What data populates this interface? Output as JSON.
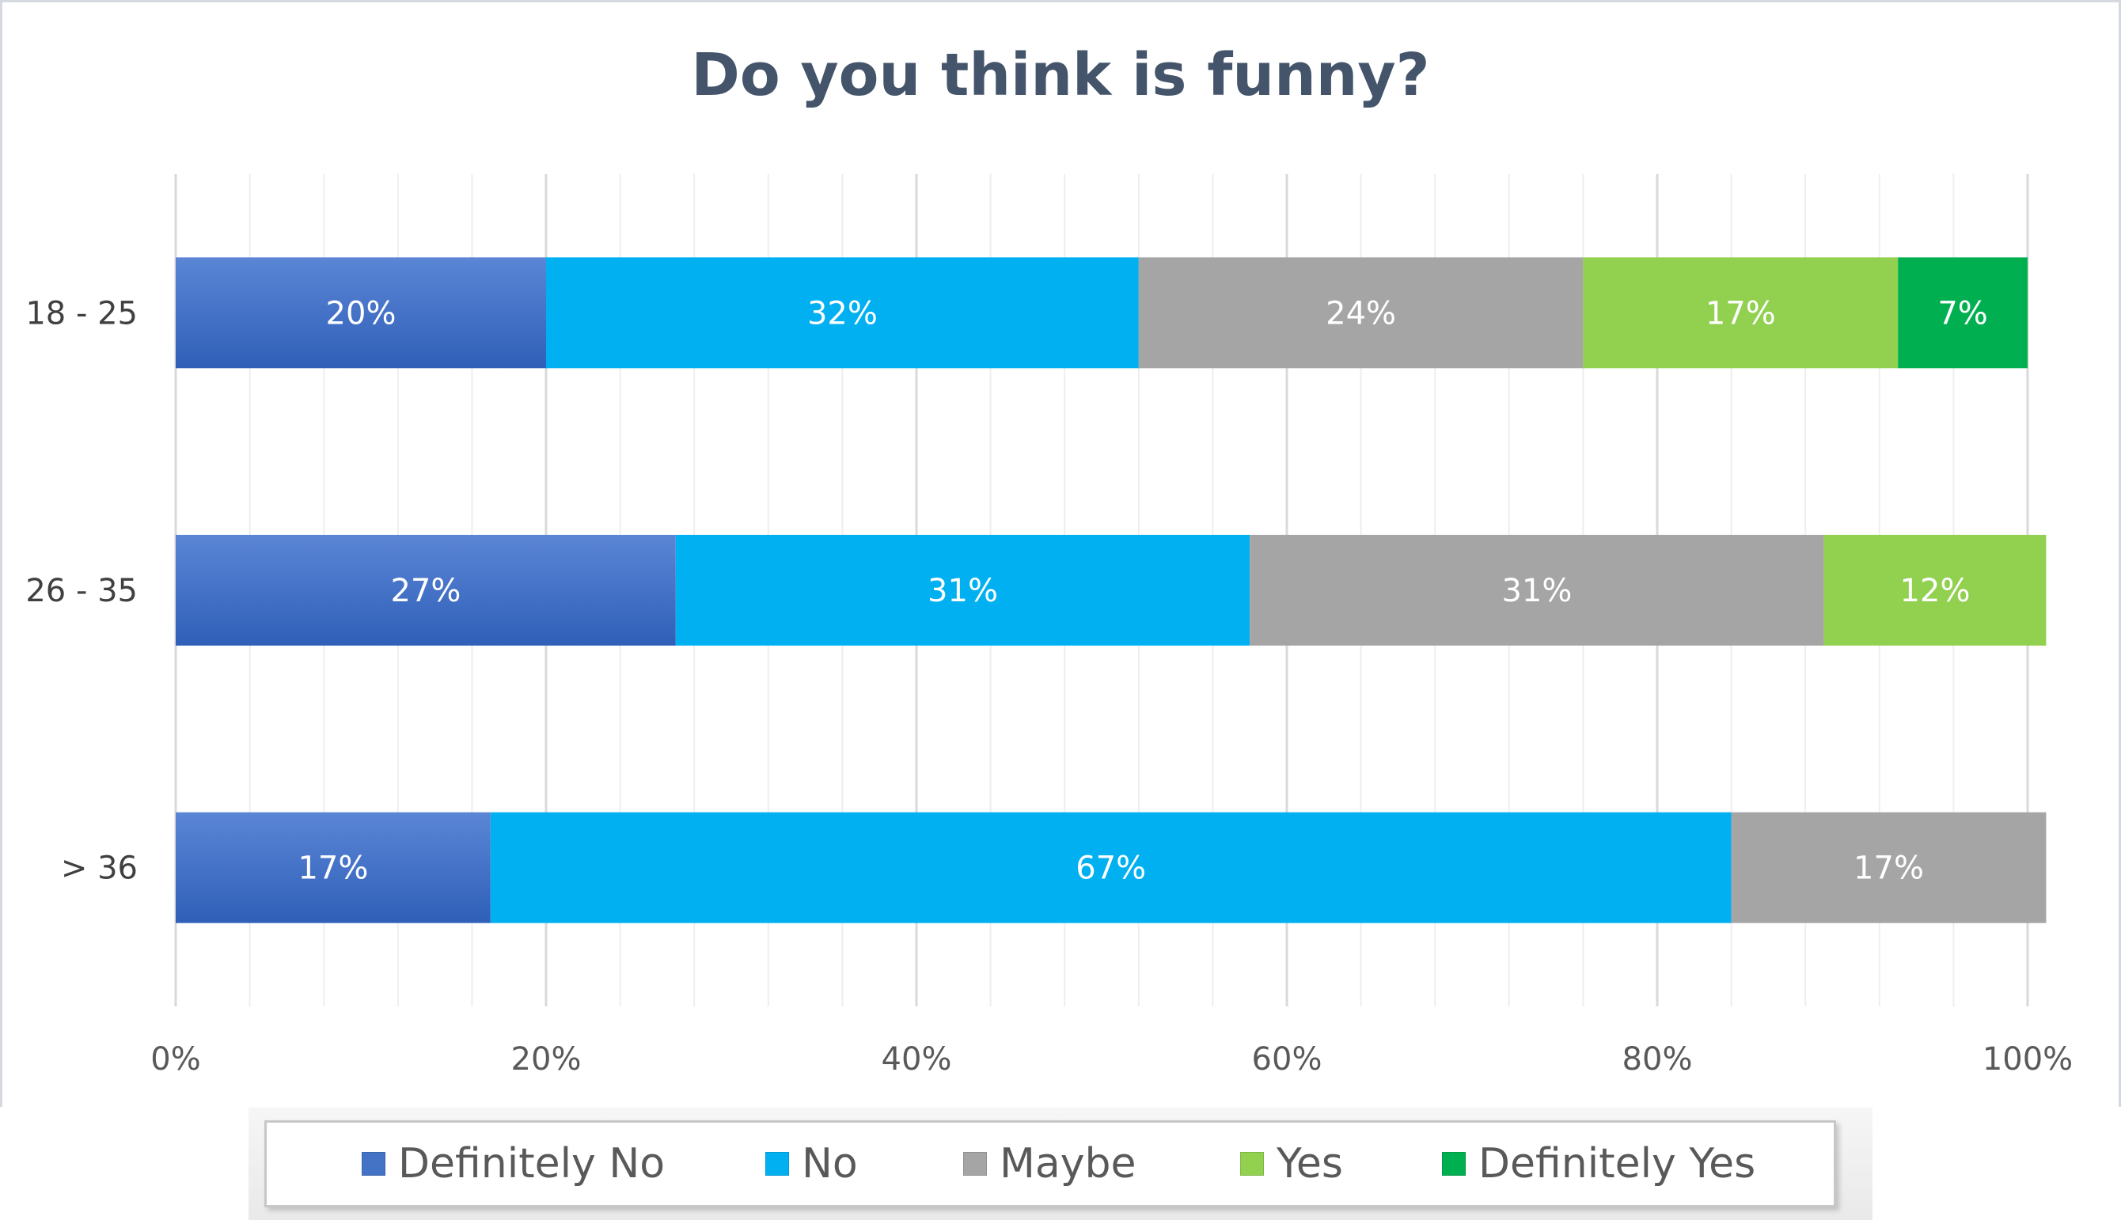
{
  "chart_data": {
    "type": "bar",
    "orientation": "horizontal",
    "stacked": "percent",
    "title": "Do you think is funny?",
    "xlabel": "",
    "ylabel": "",
    "categories": [
      "18 - 25",
      "26 - 35",
      "> 36"
    ],
    "series": [
      {
        "name": "Definitely No",
        "values": [
          20,
          27,
          17
        ],
        "labels": [
          "20%",
          "27%",
          "17%"
        ],
        "color": "#4472c4"
      },
      {
        "name": "No",
        "values": [
          32,
          31,
          67
        ],
        "labels": [
          "32%",
          "31%",
          "67%"
        ],
        "color": "#00b0f0"
      },
      {
        "name": "Maybe",
        "values": [
          24,
          31,
          17
        ],
        "labels": [
          "24%",
          "31%",
          "17%"
        ],
        "color": "#a5a5a5"
      },
      {
        "name": "Yes",
        "values": [
          17,
          12,
          0
        ],
        "labels": [
          "17%",
          "12%",
          ""
        ],
        "color": "#92d050"
      },
      {
        "name": "Definitely Yes",
        "values": [
          7,
          0,
          0
        ],
        "labels": [
          "7%",
          "",
          ""
        ],
        "color": "#00b050"
      }
    ],
    "xlim": [
      0,
      100
    ],
    "x_ticks": [
      "0%",
      "20%",
      "40%",
      "60%",
      "80%",
      "100%"
    ],
    "grid": true,
    "legend_position": "bottom"
  }
}
